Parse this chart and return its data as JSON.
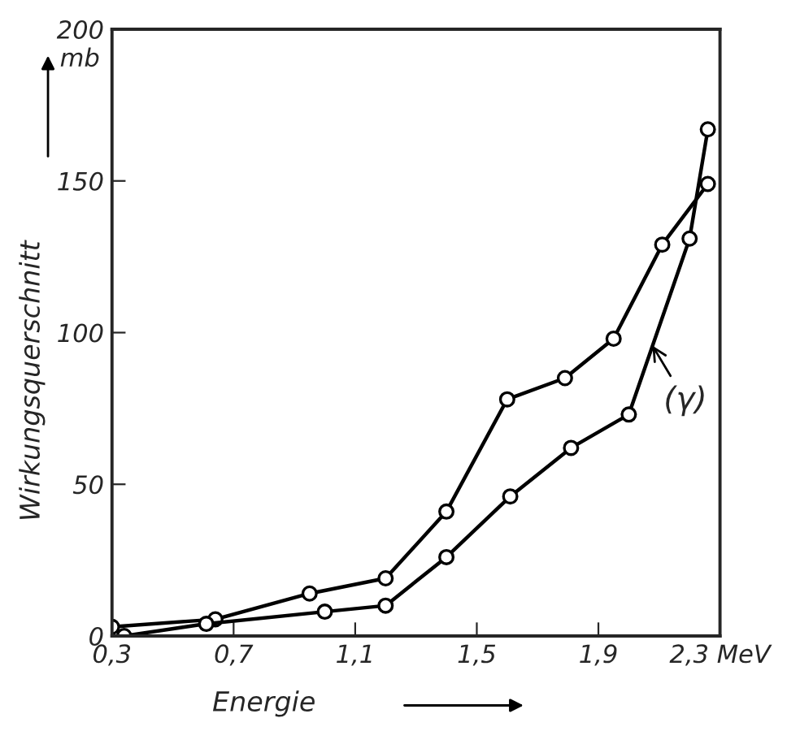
{
  "chart_data": {
    "type": "line",
    "xlabel": "Energie",
    "ylabel": "Wirkungsquerschnitt",
    "xlim": [
      0.3,
      2.3
    ],
    "ylim": [
      0,
      200
    ],
    "xticks": [
      {
        "value": 0.3,
        "label": "0,3"
      },
      {
        "value": 0.7,
        "label": "0,7"
      },
      {
        "value": 1.1,
        "label": "1,1"
      },
      {
        "value": 1.5,
        "label": "1,5"
      },
      {
        "value": 1.9,
        "label": "1,9"
      },
      {
        "value": 2.3,
        "label": "2,3 MeV"
      }
    ],
    "yticks": [
      0,
      50,
      100,
      150,
      200
    ],
    "marker": "circle",
    "grid": false,
    "legend": false,
    "series": [
      {
        "color": "#000000",
        "x": [
          0.3,
          0.64,
          0.95,
          1.2,
          1.4,
          1.6,
          1.79,
          1.95,
          2.11,
          2.26
        ],
        "values": [
          3,
          5.5,
          14,
          19,
          41,
          78,
          85,
          98,
          129,
          149
        ]
      },
      {
        "color": "#000000",
        "x": [
          0.34,
          0.61,
          1.0,
          1.2,
          1.4,
          1.61,
          1.81,
          2.0,
          2.2,
          2.26
        ],
        "values": [
          0,
          4,
          8,
          10,
          26,
          46,
          62,
          73,
          131,
          167
        ]
      }
    ],
    "annotations": [
      "mb",
      {
        "text": "(γ)",
        "x": 2.07,
        "y": 97
      }
    ]
  }
}
